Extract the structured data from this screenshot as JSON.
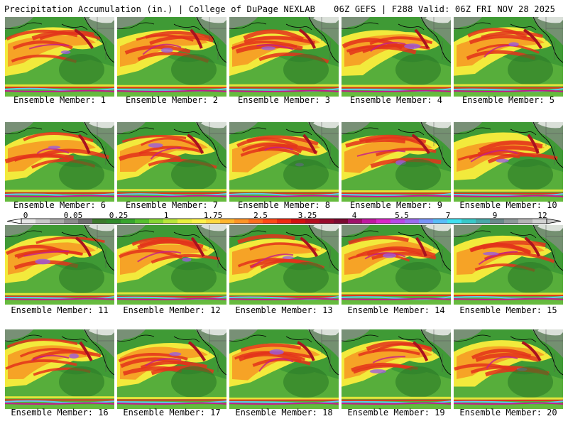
{
  "header": {
    "title_left": "Precipitation Accumulation (in.) | College of DuPage NEXLAB",
    "title_right": "06Z GEFS | F288 Valid: 06Z FRI NOV 28 2025"
  },
  "members": [
    {
      "label": "Ensemble Member: 1"
    },
    {
      "label": "Ensemble Member: 2"
    },
    {
      "label": "Ensemble Member: 3"
    },
    {
      "label": "Ensemble Member: 4"
    },
    {
      "label": "Ensemble Member: 5"
    },
    {
      "label": "Ensemble Member: 6"
    },
    {
      "label": "Ensemble Member: 7"
    },
    {
      "label": "Ensemble Member: 8"
    },
    {
      "label": "Ensemble Member: 9"
    },
    {
      "label": "Ensemble Member: 10"
    },
    {
      "label": "Ensemble Member: 11"
    },
    {
      "label": "Ensemble Member: 12"
    },
    {
      "label": "Ensemble Member: 13"
    },
    {
      "label": "Ensemble Member: 14"
    },
    {
      "label": "Ensemble Member: 15"
    },
    {
      "label": "Ensemble Member: 16"
    },
    {
      "label": "Ensemble Member: 17"
    },
    {
      "label": "Ensemble Member: 18"
    },
    {
      "label": "Ensemble Member: 19"
    },
    {
      "label": "Ensemble Member: 20"
    }
  ],
  "colorbar": {
    "tick_labels": [
      "0",
      "0.05",
      "0.25",
      "1",
      "1.75",
      "2.5",
      "3.25",
      "4",
      "5.5",
      "7",
      "9",
      "12"
    ],
    "colors": [
      "#e6e6e6",
      "#c8c8c8",
      "#aaaaaa",
      "#8c8c8c",
      "#6e6e6e",
      "#3c7a2c",
      "#2f8a2a",
      "#37a52d",
      "#55bf2f",
      "#86d632",
      "#b8e63a",
      "#e8f03e",
      "#fff24a",
      "#ffd93d",
      "#ffb52e",
      "#ff9426",
      "#ff6f1e",
      "#ff4a16",
      "#ef2a12",
      "#d41010",
      "#b50e20",
      "#960b2c",
      "#7a0a30",
      "#a0106a",
      "#c018a0",
      "#d828c8",
      "#b848e8",
      "#9a6cf0",
      "#7894f8",
      "#58bcf8",
      "#40e0f0",
      "#38c8c8",
      "#48a8a8",
      "#6a8a8a",
      "#8e9a9a",
      "#b4b4b4",
      "#d2d2d2"
    ]
  },
  "map_colors": {
    "green": "#3f9a35",
    "dark_green": "#2c7a27",
    "light_green": "#6cc040",
    "yellow": "#f2ea3c",
    "orange": "#f6a326",
    "red": "#e3321b",
    "dark_red": "#a9121f",
    "magenta": "#c41c8c",
    "purple": "#9a5ce0",
    "cyan": "#5fc8f0",
    "gray": "#8c8c8c",
    "white": "#f4f4f4"
  }
}
